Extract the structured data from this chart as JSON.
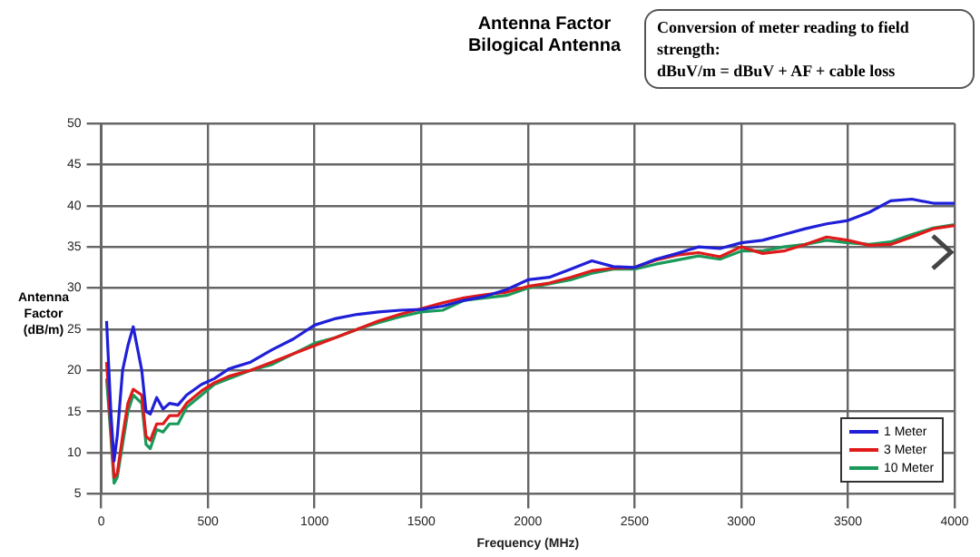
{
  "chart_data": {
    "type": "line",
    "title": [
      "Antenna Factor",
      "Bilogical Antenna"
    ],
    "xlabel": "Frequency (MHz)",
    "ylabel": "Antenna Factor (dB/m)",
    "annotations": [
      "Conversion of meter reading to field strength:",
      "dBuV/m = dBuV + AF + cable loss"
    ],
    "x": [
      25,
      45,
      60,
      75,
      100,
      125,
      150,
      190,
      210,
      230,
      260,
      290,
      320,
      360,
      400,
      470,
      530,
      600,
      700,
      800,
      900,
      1000,
      1100,
      1200,
      1300,
      1400,
      1500,
      1600,
      1700,
      1800,
      1900,
      2000,
      2100,
      2200,
      2300,
      2400,
      2500,
      2600,
      2700,
      2800,
      2900,
      3000,
      3100,
      3200,
      3300,
      3400,
      3500,
      3600,
      3700,
      3800,
      3900,
      4000
    ],
    "xlim": [
      0,
      4000
    ],
    "xticks": [
      0,
      500,
      1000,
      1500,
      2000,
      2500,
      3000,
      3500,
      4000
    ],
    "ylim": [
      5,
      50
    ],
    "yticks": [
      5,
      10,
      15,
      20,
      25,
      30,
      35,
      40,
      45,
      50
    ],
    "grid": true,
    "legend": "bottom right",
    "marker": "none",
    "line_style": "solid",
    "series": [
      {
        "name": "1 Meter",
        "color": "#1f1fd8",
        "values": [
          26,
          15,
          9,
          12,
          20,
          23,
          25.3,
          20,
          15,
          14.7,
          16.7,
          15.3,
          16,
          15.8,
          17,
          18.3,
          19,
          20.2,
          21,
          22.5,
          23.8,
          25.5,
          26.3,
          26.8,
          27.1,
          27.3,
          27.4,
          27.8,
          28.5,
          29,
          29.8,
          31,
          31.3,
          32.3,
          33.3,
          32.6,
          32.5,
          33.5,
          34.2,
          35,
          34.8,
          35.5,
          35.8,
          36.5,
          37.2,
          37.8,
          38.2,
          39.2,
          40.6,
          40.8,
          40.3,
          40.3
        ]
      },
      {
        "name": "3 Meter",
        "color": "#e01a1a",
        "values": [
          21,
          13,
          7,
          7.5,
          12,
          16,
          17.7,
          17,
          12,
          11.5,
          13.5,
          13.5,
          14.5,
          14.5,
          16,
          17.5,
          18.5,
          19.3,
          20,
          21,
          22,
          23,
          24,
          25,
          26,
          26.8,
          27.5,
          28.2,
          28.8,
          29.2,
          29.5,
          30.2,
          30.6,
          31.3,
          32.1,
          32.4,
          32.5,
          33.4,
          34,
          34.3,
          33.8,
          35,
          34.2,
          34.5,
          35.3,
          36.2,
          35.8,
          35.2,
          35.3,
          36.2,
          37.2,
          37.6
        ]
      },
      {
        "name": "10 Meter",
        "color": "#1a9a5a",
        "values": [
          19,
          12,
          6.3,
          7,
          11,
          15,
          17,
          16,
          11,
          10.5,
          12.8,
          12.5,
          13.5,
          13.5,
          15.5,
          17,
          18.3,
          19,
          20,
          20.7,
          22,
          23.3,
          24,
          25,
          25.8,
          26.5,
          27.1,
          27.3,
          28.5,
          28.8,
          29.1,
          30,
          30.5,
          31,
          31.8,
          32.3,
          32.3,
          32.9,
          33.4,
          33.9,
          33.5,
          34.5,
          34.5,
          35,
          35.3,
          35.8,
          35.5,
          35.3,
          35.6,
          36.5,
          37.3,
          37.7
        ]
      }
    ]
  }
}
